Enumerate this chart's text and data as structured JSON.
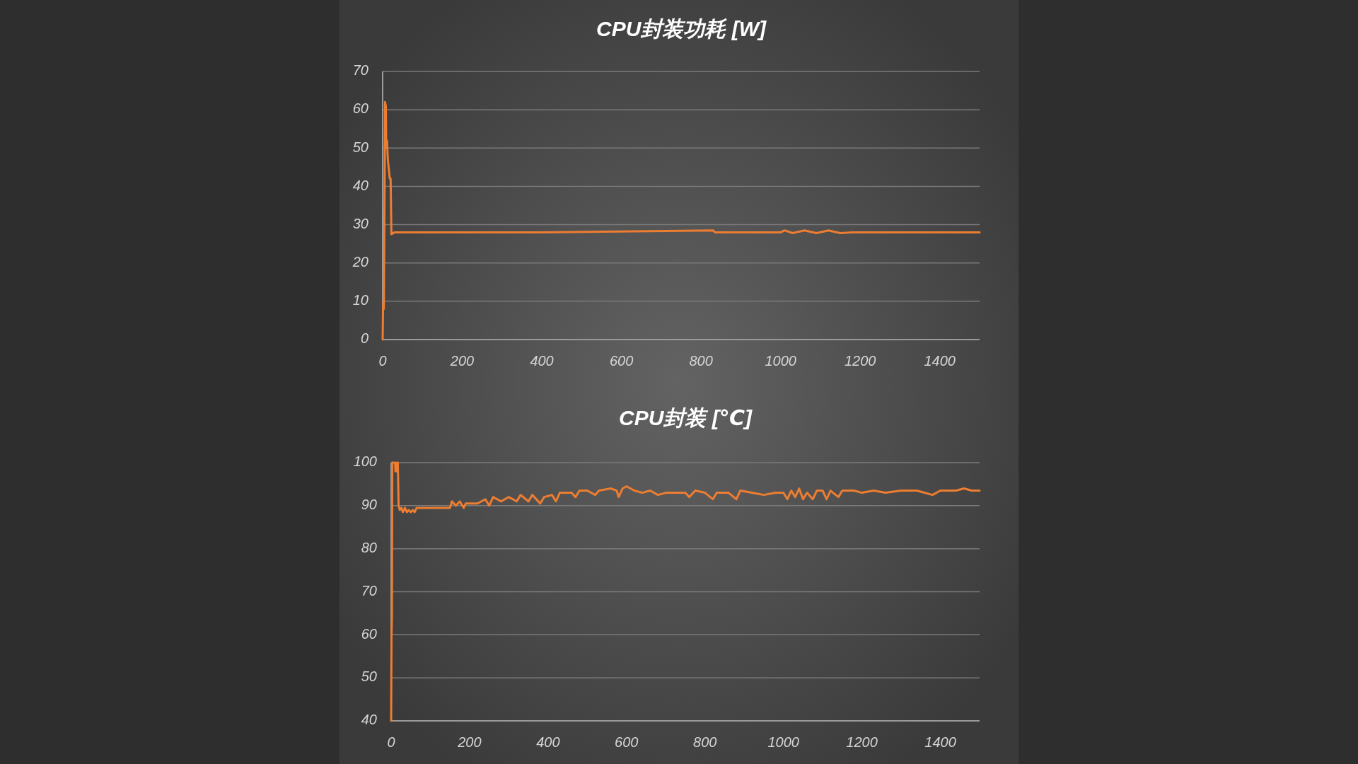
{
  "chart_data": [
    {
      "type": "line",
      "title": "CPU封装功耗 [W]",
      "color": "#ed7d31",
      "grid": "y",
      "xlim": [
        0,
        1500
      ],
      "ylim": [
        0,
        70
      ],
      "xticks": [
        0,
        200,
        400,
        600,
        800,
        1000,
        1200,
        1400
      ],
      "yticks": [
        0,
        10,
        20,
        30,
        40,
        50,
        60,
        70
      ],
      "x": [
        0,
        1,
        2,
        3,
        5,
        6,
        8,
        9,
        11,
        13,
        18,
        20,
        22,
        30,
        100,
        400,
        830,
        835,
        1000,
        1010,
        1030,
        1060,
        1090,
        1120,
        1150,
        1180,
        1500
      ],
      "values": [
        0,
        8,
        10,
        8,
        40,
        62,
        61,
        50,
        52,
        47,
        42,
        42,
        27.5,
        28,
        28,
        28,
        28.5,
        28,
        28,
        28.5,
        27.8,
        28.5,
        27.8,
        28.5,
        27.8,
        28,
        28
      ]
    },
    {
      "type": "line",
      "title": "CPU封装 [℃]",
      "color": "#ed7d31",
      "grid": "y",
      "xlim": [
        0,
        1500
      ],
      "ylim": [
        40,
        100
      ],
      "xticks": [
        0,
        200,
        400,
        600,
        800,
        1000,
        1200,
        1400
      ],
      "yticks": [
        40,
        50,
        60,
        70,
        80,
        90,
        100
      ],
      "x": [
        0,
        1,
        2,
        3,
        10,
        11,
        14,
        15,
        17,
        19,
        22,
        26,
        30,
        35,
        40,
        45,
        50,
        55,
        60,
        65,
        80,
        100,
        120,
        150,
        155,
        165,
        175,
        185,
        190,
        220,
        240,
        250,
        260,
        280,
        300,
        320,
        330,
        350,
        360,
        380,
        390,
        410,
        420,
        430,
        460,
        470,
        480,
        500,
        520,
        530,
        560,
        575,
        580,
        590,
        600,
        620,
        640,
        660,
        680,
        700,
        720,
        750,
        760,
        775,
        800,
        820,
        830,
        860,
        880,
        890,
        920,
        950,
        980,
        1000,
        1010,
        1020,
        1030,
        1040,
        1050,
        1060,
        1075,
        1085,
        1100,
        1110,
        1120,
        1140,
        1150,
        1180,
        1200,
        1230,
        1260,
        1300,
        1340,
        1380,
        1400,
        1440,
        1460,
        1480,
        1500
      ],
      "values": [
        40,
        60,
        64,
        100,
        100,
        98,
        98,
        100,
        100,
        90,
        89,
        89.5,
        88.5,
        89.5,
        88.5,
        89,
        88.5,
        89,
        88.5,
        89.5,
        89.5,
        89.5,
        89.5,
        89.5,
        91,
        90,
        91,
        89.5,
        90.5,
        90.5,
        91.5,
        90,
        92,
        91,
        92,
        91,
        92.5,
        91,
        92.5,
        90.5,
        92,
        92.5,
        91,
        93,
        93,
        92,
        93.5,
        93.5,
        92.5,
        93.5,
        94,
        93.5,
        92,
        94,
        94.5,
        93.5,
        93,
        93.5,
        92.5,
        93,
        93,
        93,
        92,
        93.5,
        93,
        91.5,
        93,
        93,
        91.5,
        93.5,
        93,
        92.5,
        93,
        93,
        91.5,
        93.5,
        92,
        94,
        91.5,
        93,
        91.5,
        93.5,
        93.5,
        91.5,
        93.5,
        92,
        93.5,
        93.5,
        93,
        93.5,
        93,
        93.5,
        93.5,
        92.5,
        93.5,
        93.5,
        94,
        93.5,
        93.5
      ]
    }
  ]
}
